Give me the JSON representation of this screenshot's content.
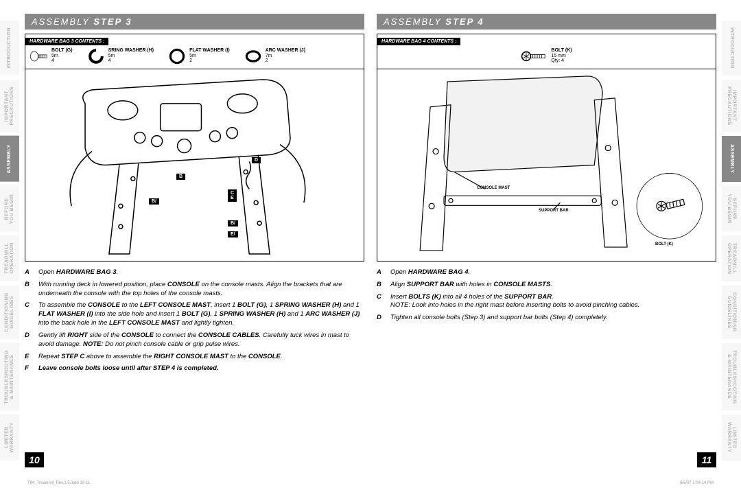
{
  "colors": {
    "header_bg": "#888888",
    "header_text": "#ffffff",
    "tab_inactive_bg": "#f7f7f7",
    "tab_inactive_text": "#b8b8b8",
    "tab_active_bg": "#888888",
    "tab_active_text": "#ffffff",
    "black": "#000000",
    "page_bg": "#ffffff"
  },
  "tabs": [
    {
      "label": "INTRODUCTION",
      "active": false
    },
    {
      "label": "IMPORTANT PRECAUTIONS",
      "active": false
    },
    {
      "label": "ASSEMBLY",
      "active": true
    },
    {
      "label": "BEFORE YOU BEGIN",
      "active": false
    },
    {
      "label": "TREADMILL OPERATION",
      "active": false
    },
    {
      "label": "CONDITIONING GUIDELINES",
      "active": false
    },
    {
      "label": "TROUBLESHOOTING & MAINTENANCE",
      "active": false
    },
    {
      "label": "LIMITED WARRANTY",
      "active": false
    }
  ],
  "left": {
    "header_prefix": "ASSEMBLY ",
    "header_step": "STEP 3",
    "hw_title": "HARDWARE BAG 3 CONTENTS :",
    "hw_items": [
      {
        "name": "BOLT (G)",
        "size": "5m",
        "qty": "4"
      },
      {
        "name": "SRING WASHER (H)",
        "size": "5m",
        "qty": "4"
      },
      {
        "name": "FLAT WASHER (I)",
        "size": "5m",
        "qty": "2"
      },
      {
        "name": "ARC WASHER (J)",
        "size": "7m",
        "qty": "2"
      }
    ],
    "callouts": {
      "d": "D",
      "b": "B",
      "b2": "B/",
      "c": "C",
      "e": "E",
      "bv": "B/",
      "ev": "E/"
    },
    "instructions": [
      {
        "l": "A",
        "t": "Open <b>HARDWARE BAG 3</b>."
      },
      {
        "l": "B",
        "t": "With running deck in lowered position, place <b>CONSOLE</b> on the console masts. Align the brackets that are underneath the console with the top holes of the console masts."
      },
      {
        "l": "C",
        "t": "To assemble the <b>CONSOLE</b> to the <b>LEFT CONSOLE MAST</b>, insert 1 <b>BOLT (G)</b>, 1 <b>SPRING WASHER (H)</b> and 1 <b>FLAT WASHER (I)</b> into the side hole and insert 1 <b>BOLT (G)</b>, 1 <b>SPRING WASHER (H)</b> and 1 <b>ARC WASHER (J)</b> into the back hole in the <b>LEFT CONSOLE MAST</b> and lightly tighten."
      },
      {
        "l": "D",
        "t": "Gently lift <b>RIGHT</b> side of the <b>CONSOLE</b> to connect the <b>CONSOLE CABLES</b>. Carefully tuck wires in mast to avoid damage. <b>NOTE:</b> Do not pinch console cable or grip pulse wires."
      },
      {
        "l": "E",
        "t": "Repeat <b>STEP C</b> above to assemble the <b>RIGHT CONSOLE MAST</b> to the <b>CONSOLE</b>."
      },
      {
        "l": "F",
        "t": "<b>Leave console bolts loose until after STEP 4 is completed.</b>"
      }
    ],
    "page_num": "10"
  },
  "right": {
    "header_prefix": "ASSEMBLY ",
    "header_step": "STEP 4",
    "hw_title": "HARDWARE BAG 4 CONTENTS :",
    "hw_items": [
      {
        "name": "BOLT (K)",
        "size": "15 mm",
        "qty": "Qty: 4"
      }
    ],
    "labels": {
      "console_mast": "CONSOLE MAST",
      "support_bar": "SUPPORT BAR",
      "bolt": "BOLT (K)"
    },
    "instructions": [
      {
        "l": "A",
        "t": "Open <b>HARDWARE BAG 4</b>."
      },
      {
        "l": "B",
        "t": "Align <b>SUPPORT BAR</b> with holes in <b>CONSOLE MASTS</b>."
      },
      {
        "l": "C",
        "t": "Insert <b>BOLTS (K)</b> into all 4 holes of the <b>SUPPORT BAR</b>.<br>NOTE: Look into holes in the right mast before inserting bolts to avoid pinching cables."
      },
      {
        "l": "D",
        "t": "Tighten all console bolts (Step 3) and support bar bolts (Step 4) completely."
      }
    ],
    "page_num": "11"
  },
  "footer": {
    "left": "T84_Treadmill_Rev.1.5.indd   10-11",
    "right": "8/6/07   1:04:14 PM"
  }
}
